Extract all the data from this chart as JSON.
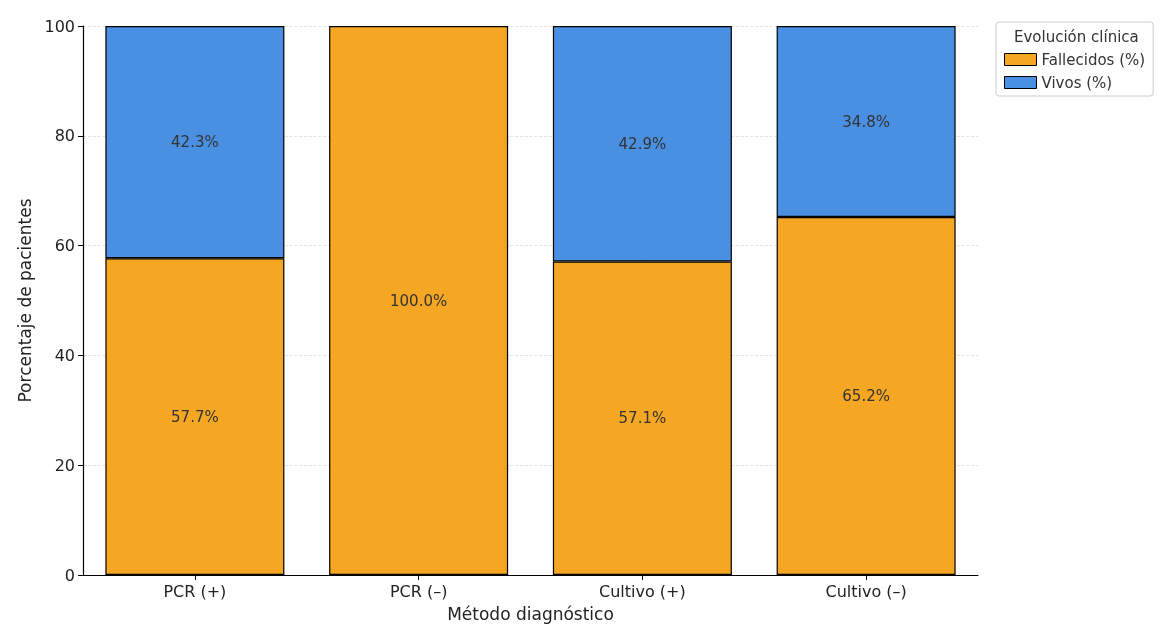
{
  "chart_data": {
    "type": "bar",
    "stacked": true,
    "xlabel": "Método diagnóstico",
    "ylabel": "Porcentaje de pacientes",
    "legend_title": "Evolución clínica",
    "legend": "top right",
    "grid": true,
    "categories": [
      "PCR (+)",
      "PCR (–)",
      "Cultivo (+)",
      "Cultivo (–)"
    ],
    "series": [
      {
        "name": "Fallecidos (%)",
        "color": "#f5a623",
        "values": [
          57.7,
          100.0,
          57.1,
          65.2
        ],
        "value_labels": [
          "57.7%",
          "100.0%",
          "57.1%",
          "65.2%"
        ]
      },
      {
        "name": "Vivos (%)",
        "color": "#4a90e2",
        "values": [
          42.3,
          0,
          42.9,
          34.8
        ],
        "value_labels": [
          "42.3%",
          null,
          "42.9%",
          "34.8%"
        ]
      }
    ],
    "ylim": [
      0,
      100
    ],
    "yticks": [
      0,
      20,
      40,
      60,
      80,
      100
    ]
  }
}
